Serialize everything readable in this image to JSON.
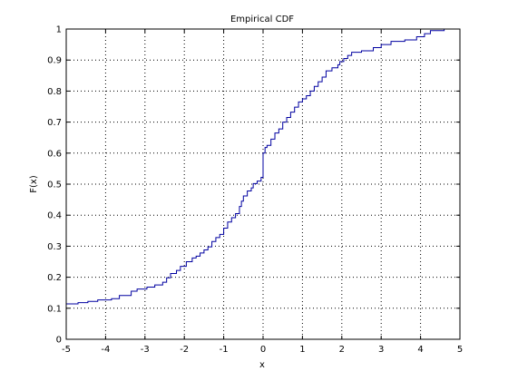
{
  "chart_data": {
    "type": "line",
    "title": "Empirical CDF",
    "xlabel": "x",
    "ylabel": "F(x)",
    "xlim": [
      -5,
      5
    ],
    "ylim": [
      0,
      1
    ],
    "x_ticks": [
      "-5",
      "-4",
      "-3",
      "-2",
      "-1",
      "0",
      "1",
      "2",
      "3",
      "4",
      "5"
    ],
    "y_ticks": [
      "0",
      "0.1",
      "0.2",
      "0.3",
      "0.4",
      "0.5",
      "0.6",
      "0.7",
      "0.8",
      "0.9",
      "1"
    ],
    "grid": true,
    "grid_style": "dotted",
    "series_color": "#0000a0",
    "series": [
      {
        "step": "post",
        "x": [
          -5.0,
          -4.7,
          -4.45,
          -4.2,
          -3.85,
          -3.65,
          -3.35,
          -3.2,
          -2.95,
          -2.75,
          -2.55,
          -2.45,
          -2.35,
          -2.2,
          -2.1,
          -1.95,
          -1.8,
          -1.7,
          -1.6,
          -1.5,
          -1.4,
          -1.3,
          -1.2,
          -1.1,
          -1.0,
          -0.9,
          -0.8,
          -0.7,
          -0.6,
          -0.55,
          -0.5,
          -0.4,
          -0.3,
          -0.25,
          -0.15,
          -0.05,
          0.0,
          0.05,
          0.1,
          0.2,
          0.3,
          0.4,
          0.5,
          0.6,
          0.7,
          0.8,
          0.9,
          1.0,
          1.1,
          1.2,
          1.3,
          1.4,
          1.5,
          1.6,
          1.75,
          1.9,
          1.95,
          2.05,
          2.15,
          2.25,
          2.5,
          2.8,
          3.0,
          3.25,
          3.6,
          3.9,
          4.1,
          4.25,
          4.6
        ],
        "y": [
          0.114,
          0.118,
          0.122,
          0.127,
          0.131,
          0.141,
          0.155,
          0.162,
          0.168,
          0.175,
          0.184,
          0.198,
          0.212,
          0.222,
          0.235,
          0.25,
          0.262,
          0.268,
          0.278,
          0.288,
          0.298,
          0.315,
          0.328,
          0.338,
          0.358,
          0.378,
          0.392,
          0.405,
          0.428,
          0.445,
          0.462,
          0.478,
          0.488,
          0.502,
          0.51,
          0.522,
          0.6,
          0.618,
          0.625,
          0.645,
          0.665,
          0.678,
          0.7,
          0.715,
          0.732,
          0.748,
          0.765,
          0.775,
          0.785,
          0.8,
          0.815,
          0.83,
          0.845,
          0.865,
          0.875,
          0.885,
          0.895,
          0.905,
          0.915,
          0.925,
          0.93,
          0.94,
          0.95,
          0.96,
          0.965,
          0.975,
          0.985,
          0.995,
          1.0
        ]
      }
    ]
  }
}
